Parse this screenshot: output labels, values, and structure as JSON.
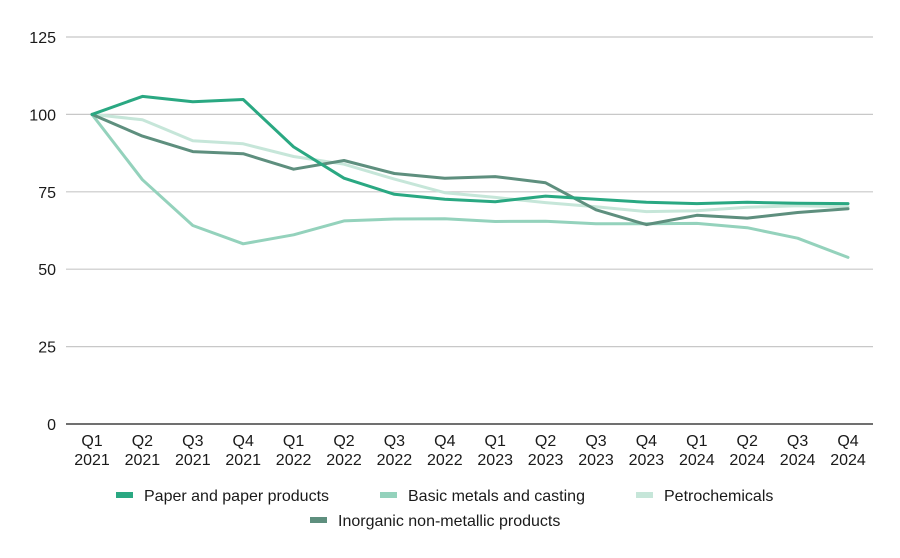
{
  "chart_data": {
    "type": "line",
    "title": "",
    "xlabel": "",
    "ylabel": "",
    "ylim": [
      0,
      125
    ],
    "yticks": [
      0,
      25,
      50,
      75,
      100,
      125
    ],
    "grid": true,
    "legend_position": "bottom",
    "categories": [
      [
        "Q1",
        "2021"
      ],
      [
        "Q2",
        "2021"
      ],
      [
        "Q3",
        "2021"
      ],
      [
        "Q4",
        "2021"
      ],
      [
        "Q1",
        "2022"
      ],
      [
        "Q2",
        "2022"
      ],
      [
        "Q3",
        "2022"
      ],
      [
        "Q4",
        "2022"
      ],
      [
        "Q1",
        "2023"
      ],
      [
        "Q2",
        "2023"
      ],
      [
        "Q3",
        "2023"
      ],
      [
        "Q4",
        "2023"
      ],
      [
        "Q1",
        "2024"
      ],
      [
        "Q2",
        "2024"
      ],
      [
        "Q3",
        "2024"
      ],
      [
        "Q4",
        "2024"
      ]
    ],
    "series": [
      {
        "name": "Paper and paper products",
        "color": "#2aa882",
        "values": [
          100,
          105.8,
          104.1,
          104.8,
          89.5,
          79.4,
          74.2,
          72.6,
          71.8,
          73.6,
          72.6,
          71.6,
          71.2,
          71.6,
          71.3,
          71.2
        ]
      },
      {
        "name": "Basic metals and casting",
        "color": "#94d2bc",
        "values": [
          100,
          78.9,
          64.1,
          58.2,
          61.1,
          65.6,
          66.2,
          66.3,
          65.4,
          65.5,
          64.7,
          64.7,
          64.8,
          63.4,
          60.0,
          53.8
        ]
      },
      {
        "name": "Petrochemicals",
        "color": "#c6e6d9",
        "values": [
          100,
          98.3,
          91.5,
          90.5,
          86.4,
          83.9,
          79.1,
          74.7,
          73.2,
          71.5,
          70.2,
          68.6,
          68.9,
          70.0,
          70.5,
          70.2
        ]
      },
      {
        "name": "Inorganic non-metallic products",
        "color": "#5e8f7e",
        "values": [
          100,
          93.0,
          88.0,
          87.3,
          82.3,
          85.1,
          80.9,
          79.4,
          79.9,
          77.9,
          69.2,
          64.4,
          67.4,
          66.5,
          68.3,
          69.5
        ]
      }
    ]
  },
  "colors": {
    "grid": "#c8c8c8",
    "axis": "#404040",
    "text": "#1a1a1a"
  }
}
